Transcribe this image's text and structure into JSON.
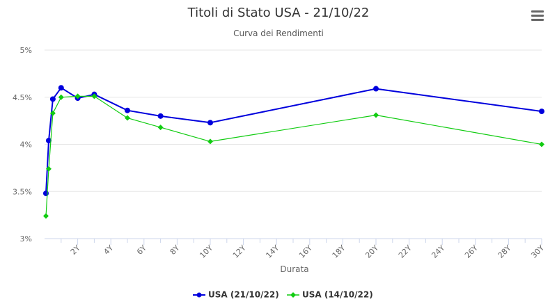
{
  "header": {
    "title": "Titoli di Stato USA - 21/10/22",
    "subtitle": "Curva dei Rendimenti",
    "menu_icon": "hamburger-menu-icon"
  },
  "chart_data": {
    "type": "line",
    "title": "Titoli di Stato USA - 21/10/22",
    "subtitle": "Curva dei Rendimenti",
    "xlabel": "Durata",
    "ylabel": "",
    "x_unit": "years",
    "xlim": [
      0,
      30
    ],
    "ylim": [
      3,
      5
    ],
    "x_ticks": [
      "2Y",
      "4Y",
      "6Y",
      "8Y",
      "10Y",
      "12Y",
      "14Y",
      "16Y",
      "18Y",
      "20Y",
      "22Y",
      "24Y",
      "26Y",
      "28Y",
      "30Y"
    ],
    "x_tick_values": [
      2,
      4,
      6,
      8,
      10,
      12,
      14,
      16,
      18,
      20,
      22,
      24,
      26,
      28,
      30
    ],
    "y_ticks": [
      "3%",
      "3.5%",
      "4%",
      "4.5%",
      "5%"
    ],
    "y_tick_values": [
      3,
      3.5,
      4,
      4.5,
      5
    ],
    "grid": true,
    "legend_position": "bottom",
    "series": [
      {
        "name": "USA (21/10/22)",
        "color": "#0000dd",
        "marker": "circle",
        "x": [
          0.083,
          0.25,
          0.5,
          1,
          2,
          3,
          5,
          7,
          10,
          20,
          30
        ],
        "y": [
          3.48,
          4.04,
          4.48,
          4.6,
          4.49,
          4.53,
          4.36,
          4.3,
          4.23,
          4.59,
          4.35
        ]
      },
      {
        "name": "USA (14/10/22)",
        "color": "#11cc11",
        "marker": "diamond",
        "x": [
          0.083,
          0.25,
          0.5,
          1,
          2,
          3,
          5,
          7,
          10,
          20,
          30
        ],
        "y": [
          3.24,
          3.74,
          4.33,
          4.5,
          4.51,
          4.51,
          4.28,
          4.18,
          4.03,
          4.31,
          4.0
        ]
      }
    ]
  }
}
